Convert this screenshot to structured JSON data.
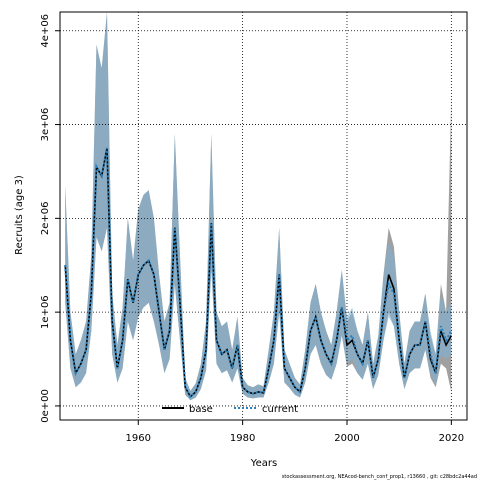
{
  "chart_data": {
    "type": "line",
    "xlabel": "Years",
    "ylabel": "Recruits (age 3)",
    "xlim": [
      1945,
      2023
    ],
    "ylim": [
      -150000,
      4200000
    ],
    "x_ticks": [
      1960,
      1980,
      2000,
      2020
    ],
    "x_tick_labels": [
      "1960",
      "1980",
      "2000",
      "2020"
    ],
    "y_ticks": [
      0,
      1000000,
      2000000,
      3000000,
      4000000
    ],
    "y_tick_labels": [
      "0e+00",
      "1e+06",
      "2e+06",
      "3e+06",
      "4e+06"
    ],
    "grid": true,
    "legend_position": "bottom-center",
    "footer": "stockassessment.org, NEAcod-bench_conf_prop1, r13660 , git: c28bdc2a44ad",
    "colors": {
      "base_line": "#000000",
      "current_line": "#2c7fb8",
      "base_band": "#808080",
      "current_band": "#7fb3d5",
      "grid": "#000000"
    },
    "x": [
      1946,
      1947,
      1948,
      1949,
      1950,
      1951,
      1952,
      1953,
      1954,
      1955,
      1956,
      1957,
      1958,
      1959,
      1960,
      1961,
      1962,
      1963,
      1964,
      1965,
      1966,
      1967,
      1968,
      1969,
      1970,
      1971,
      1972,
      1973,
      1974,
      1975,
      1976,
      1977,
      1978,
      1979,
      1980,
      1981,
      1982,
      1983,
      1984,
      1985,
      1986,
      1987,
      1988,
      1989,
      1990,
      1991,
      1992,
      1993,
      1994,
      1995,
      1996,
      1997,
      1998,
      1999,
      2000,
      2001,
      2002,
      2003,
      2004,
      2005,
      2006,
      2007,
      2008,
      2009,
      2010,
      2011,
      2012,
      2013,
      2014,
      2015,
      2016,
      2017,
      2018,
      2019,
      2020
    ],
    "series": [
      {
        "name": "base",
        "style": "solid",
        "values": [
          1500000,
          700000,
          350000,
          450000,
          600000,
          1200000,
          2550000,
          2450000,
          2750000,
          900000,
          400000,
          700000,
          1350000,
          1100000,
          1400000,
          1500000,
          1550000,
          1400000,
          1000000,
          600000,
          800000,
          1900000,
          1100000,
          200000,
          100000,
          150000,
          300000,
          600000,
          1950000,
          700000,
          550000,
          600000,
          400000,
          650000,
          200000,
          150000,
          130000,
          150000,
          140000,
          400000,
          700000,
          1400000,
          400000,
          300000,
          200000,
          150000,
          400000,
          800000,
          950000,
          700000,
          550000,
          450000,
          700000,
          1050000,
          650000,
          700000,
          550000,
          450000,
          700000,
          300000,
          500000,
          1000000,
          1400000,
          1250000,
          700000,
          300000,
          550000,
          650000,
          650000,
          900000,
          500000,
          350000,
          800000,
          650000,
          750000
        ],
        "lower": [
          1100000,
          400000,
          200000,
          250000,
          350000,
          800000,
          1800000,
          1650000,
          1900000,
          550000,
          250000,
          400000,
          900000,
          700000,
          950000,
          1050000,
          1100000,
          900000,
          650000,
          350000,
          500000,
          1300000,
          700000,
          120000,
          60000,
          90000,
          180000,
          380000,
          1450000,
          450000,
          350000,
          380000,
          250000,
          400000,
          130000,
          90000,
          80000,
          90000,
          90000,
          250000,
          450000,
          1000000,
          250000,
          190000,
          120000,
          90000,
          250000,
          550000,
          650000,
          450000,
          330000,
          280000,
          450000,
          750000,
          420000,
          450000,
          350000,
          280000,
          450000,
          180000,
          330000,
          700000,
          1000000,
          850000,
          450000,
          180000,
          350000,
          400000,
          400000,
          600000,
          300000,
          200000,
          450000,
          400000,
          150000
        ],
        "upper": [
          2350000,
          1000000,
          550000,
          700000,
          900000,
          1600000,
          3850000,
          3600000,
          4200000,
          1200000,
          650000,
          1050000,
          2000000,
          1550000,
          2100000,
          2250000,
          2300000,
          2000000,
          1400000,
          900000,
          1100000,
          2900000,
          1600000,
          300000,
          160000,
          240000,
          450000,
          900000,
          2900000,
          1000000,
          850000,
          900000,
          600000,
          950000,
          300000,
          220000,
          200000,
          230000,
          210000,
          600000,
          1000000,
          1900000,
          600000,
          450000,
          300000,
          230000,
          600000,
          1100000,
          1300000,
          1000000,
          800000,
          650000,
          1000000,
          1450000,
          900000,
          1000000,
          800000,
          650000,
          1000000,
          450000,
          750000,
          1400000,
          1900000,
          1700000,
          1000000,
          450000,
          800000,
          900000,
          900000,
          1200000,
          750000,
          550000,
          1300000,
          1000000,
          3300000
        ]
      },
      {
        "name": "current",
        "style": "dotted",
        "values": [
          1500000,
          700000,
          350000,
          450000,
          600000,
          1200000,
          2550000,
          2450000,
          2750000,
          900000,
          400000,
          700000,
          1350000,
          1100000,
          1400000,
          1500000,
          1550000,
          1400000,
          1000000,
          600000,
          800000,
          1900000,
          1100000,
          200000,
          100000,
          150000,
          300000,
          600000,
          1950000,
          700000,
          550000,
          600000,
          400000,
          650000,
          200000,
          150000,
          130000,
          150000,
          140000,
          400000,
          700000,
          1400000,
          400000,
          300000,
          200000,
          150000,
          400000,
          800000,
          950000,
          700000,
          550000,
          450000,
          700000,
          1050000,
          700000,
          750000,
          550000,
          450000,
          700000,
          300000,
          500000,
          1000000,
          1300000,
          1200000,
          700000,
          300000,
          550000,
          650000,
          650000,
          900000,
          550000,
          350000,
          850000,
          700000,
          800000
        ],
        "lower": [
          1100000,
          400000,
          200000,
          250000,
          350000,
          800000,
          1800000,
          1650000,
          1900000,
          550000,
          250000,
          400000,
          900000,
          700000,
          950000,
          1050000,
          1100000,
          900000,
          650000,
          350000,
          500000,
          1300000,
          700000,
          120000,
          60000,
          90000,
          180000,
          380000,
          1450000,
          450000,
          350000,
          380000,
          250000,
          400000,
          130000,
          90000,
          80000,
          90000,
          90000,
          250000,
          450000,
          1000000,
          250000,
          190000,
          120000,
          90000,
          250000,
          550000,
          650000,
          450000,
          330000,
          280000,
          450000,
          750000,
          450000,
          500000,
          350000,
          280000,
          450000,
          180000,
          330000,
          700000,
          950000,
          850000,
          450000,
          180000,
          350000,
          400000,
          400000,
          600000,
          350000,
          220000,
          550000,
          500000,
          550000
        ],
        "upper": [
          2350000,
          1000000,
          550000,
          700000,
          900000,
          1600000,
          3850000,
          3600000,
          4200000,
          1200000,
          650000,
          1050000,
          2000000,
          1550000,
          2100000,
          2250000,
          2300000,
          2000000,
          1400000,
          900000,
          1100000,
          2900000,
          1600000,
          300000,
          160000,
          240000,
          450000,
          900000,
          2900000,
          1000000,
          850000,
          900000,
          600000,
          950000,
          300000,
          220000,
          200000,
          230000,
          210000,
          600000,
          1000000,
          1900000,
          600000,
          450000,
          300000,
          230000,
          600000,
          1100000,
          1300000,
          1000000,
          800000,
          650000,
          1000000,
          1450000,
          950000,
          1050000,
          800000,
          650000,
          1000000,
          450000,
          750000,
          1400000,
          1750000,
          1600000,
          1000000,
          450000,
          800000,
          900000,
          900000,
          1200000,
          800000,
          550000,
          1200000,
          1000000,
          1100000
        ]
      }
    ]
  }
}
